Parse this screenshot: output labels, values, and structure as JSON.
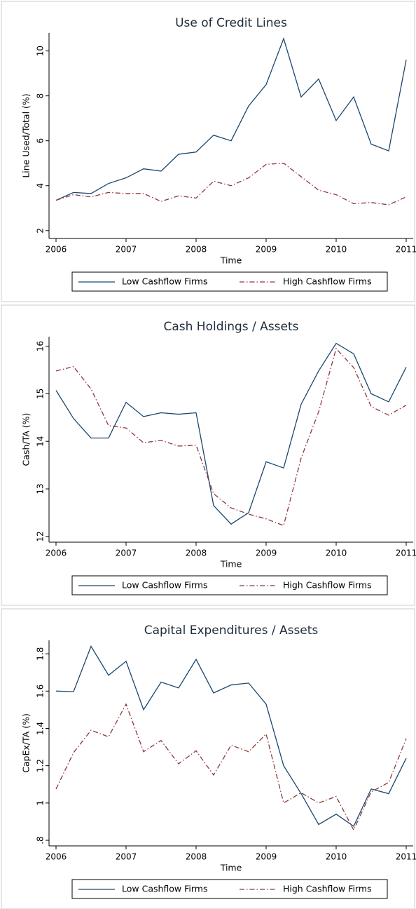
{
  "chart_data": [
    {
      "type": "line",
      "title": "Use of Credit Lines",
      "ylabel": "Line Used/Total (%)",
      "xlabel": "Time",
      "x": [
        2006,
        2006.25,
        2006.5,
        2006.75,
        2007,
        2007.25,
        2007.5,
        2007.75,
        2008,
        2008.25,
        2008.5,
        2008.75,
        2009,
        2009.25,
        2009.5,
        2009.75,
        2010,
        2010.25,
        2010.5,
        2010.75,
        2011
      ],
      "xlim": [
        2005.9,
        2011.1
      ],
      "xticks": [
        2006,
        2007,
        2008,
        2009,
        2010,
        2011
      ],
      "ylim": [
        1.65,
        10.8
      ],
      "yticks": [
        2,
        4,
        6,
        8,
        10
      ],
      "series": [
        {
          "name": "Low Cashflow Firms",
          "color": "#1a476f",
          "dash": "solid",
          "values": [
            3.35,
            3.7,
            3.65,
            4.1,
            4.35,
            4.75,
            4.65,
            5.4,
            5.5,
            6.25,
            6.0,
            7.55,
            8.5,
            10.55,
            7.95,
            8.75,
            6.9,
            7.95,
            5.85,
            5.55,
            9.6
          ]
        },
        {
          "name": "High Cashflow Firms",
          "color": "#90353b",
          "dash": "dashdot",
          "values": [
            3.35,
            3.6,
            3.5,
            3.7,
            3.65,
            3.65,
            3.3,
            3.55,
            3.45,
            4.2,
            4.0,
            4.35,
            4.95,
            5.0,
            4.4,
            3.8,
            3.6,
            3.2,
            3.25,
            3.15,
            3.5
          ]
        }
      ]
    },
    {
      "type": "line",
      "title": "Cash Holdings / Assets",
      "ylabel": "Cash/TA (%)",
      "xlabel": "Time",
      "x": [
        2006,
        2006.25,
        2006.5,
        2006.75,
        2007,
        2007.25,
        2007.5,
        2007.75,
        2008,
        2008.25,
        2008.5,
        2008.75,
        2009,
        2009.25,
        2009.5,
        2009.75,
        2010,
        2010.25,
        2010.5,
        2010.75,
        2011
      ],
      "xlim": [
        2005.9,
        2011.1
      ],
      "xticks": [
        2006,
        2007,
        2008,
        2009,
        2010,
        2011
      ],
      "ylim": [
        11.88,
        16.2
      ],
      "yticks": [
        12,
        13,
        14,
        15,
        16
      ],
      "series": [
        {
          "name": "Low Cashflow Firms",
          "color": "#1a476f",
          "dash": "solid",
          "values": [
            15.07,
            14.48,
            14.07,
            14.07,
            14.82,
            14.52,
            14.6,
            14.57,
            14.6,
            12.65,
            12.26,
            12.5,
            13.57,
            13.44,
            14.78,
            15.48,
            16.06,
            15.84,
            15.0,
            14.83,
            15.56
          ]
        },
        {
          "name": "High Cashflow Firms",
          "color": "#90353b",
          "dash": "dashdot",
          "values": [
            15.48,
            15.57,
            15.1,
            14.33,
            14.28,
            13.97,
            14.02,
            13.9,
            13.92,
            12.9,
            12.6,
            12.47,
            12.37,
            12.23,
            13.65,
            14.62,
            15.95,
            15.55,
            14.73,
            14.55,
            14.76
          ]
        }
      ]
    },
    {
      "type": "line",
      "title": "Capital Expenditures / Assets",
      "ylabel": "CapEx/TA (%)",
      "xlabel": "Time",
      "x": [
        2006,
        2006.25,
        2006.5,
        2006.75,
        2007,
        2007.25,
        2007.5,
        2007.75,
        2008,
        2008.25,
        2008.5,
        2008.75,
        2009,
        2009.25,
        2009.5,
        2009.75,
        2010,
        2010.25,
        2010.5,
        2010.75,
        2011
      ],
      "xlim": [
        2005.9,
        2011.1
      ],
      "xticks": [
        2006,
        2007,
        2008,
        2009,
        2010,
        2011
      ],
      "ylim": [
        0.77,
        1.872
      ],
      "yticks": [
        {
          "value": 0.8,
          "label": ".8"
        },
        1,
        1.2,
        1.4,
        1.6,
        1.8
      ],
      "series": [
        {
          "name": "Low Cashflow Firms",
          "color": "#1a476f",
          "dash": "solid",
          "values": [
            1.6,
            1.597,
            1.84,
            1.685,
            1.76,
            1.5,
            1.648,
            1.617,
            1.77,
            1.59,
            1.633,
            1.643,
            1.53,
            1.2,
            1.05,
            0.885,
            0.94,
            0.875,
            1.075,
            1.05,
            1.24
          ]
        },
        {
          "name": "High Cashflow Firms",
          "color": "#90353b",
          "dash": "dashdot",
          "values": [
            1.075,
            1.27,
            1.39,
            1.355,
            1.53,
            1.275,
            1.335,
            1.21,
            1.28,
            1.15,
            1.31,
            1.275,
            1.37,
            1.0,
            1.055,
            1.0,
            1.035,
            0.855,
            1.06,
            1.11,
            1.345
          ]
        }
      ]
    }
  ]
}
